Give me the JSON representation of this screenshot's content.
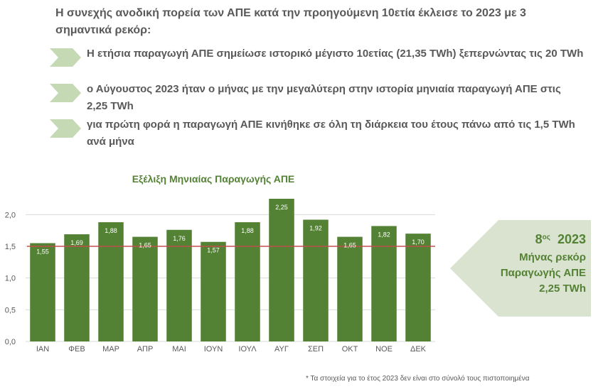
{
  "headline": "Η συνεχής ανοδική πορεία των ΑΠΕ κατά την προηγούμενη 10ετία έκλεισε το 2023 με 3 σημαντικά ρεκόρ:",
  "bullets": [
    {
      "text": "Η ετήσια παραγωγή ΑΠΕ σημείωσε ιστορικό μέγιστο 10ετίας  (21,35 TWh) ξεπερνώντας τις 20 TWh"
    },
    {
      "text": "ο Αύγουστος 2023 ήταν ο μήνας με την μεγαλύτερη στην ιστορία μηνιαία παραγωγή ΑΠΕ στις 2,25 TWh"
    },
    {
      "text": "για πρώτη φορά η παραγωγή ΑΠΕ  κινήθηκε σε όλη τη διάρκεια του έτους πάνω από τις 1,5 TWh ανά μήνα"
    }
  ],
  "callout": {
    "rank": "8",
    "rank_suffix": "ος",
    "year": "2023",
    "line1": "Μήνας ρεκόρ",
    "line2": "Παραγωγής ΑΠΕ",
    "line3": "2,25 TWh"
  },
  "footnote": "*  Τα στοιχεία για το έτος 2023 δεν είναι στο σύνολό τους πιστοποιημένα",
  "colors": {
    "bar": "#548235",
    "bar_label": "#ffffff",
    "reference_line": "#c0504d",
    "title": "#548235",
    "text": "#595959",
    "chevron": "#c5d9b5",
    "callout": "#d9e3cf",
    "grid": "#d9d9d9"
  },
  "chart_data": {
    "type": "bar",
    "title": "Εξέλιξη Μηνιαίας Παραγωγής ΑΠΕ",
    "categories": [
      "ΙΑΝ",
      "ΦΕΒ",
      "ΜΑΡ",
      "ΑΠΡ",
      "ΜΑΙ",
      "ΙΟΥΝ",
      "ΙΟΥΛ",
      "ΑΥΓ",
      "ΣΕΠ",
      "ΟΚΤ",
      "ΝΟΕ",
      "ΔΕΚ"
    ],
    "values": [
      1.55,
      1.69,
      1.88,
      1.65,
      1.76,
      1.57,
      1.88,
      2.25,
      1.92,
      1.65,
      1.82,
      1.7
    ],
    "value_labels": [
      "1,55",
      "1,69",
      "1,88",
      "1,65",
      "1,76",
      "1,57",
      "1,88",
      "2,25",
      "1,92",
      "1,65",
      "1,82",
      "1,70"
    ],
    "ylim": [
      0,
      2.25
    ],
    "y_ticks": [
      0,
      0.5,
      1.0,
      1.5,
      2.0
    ],
    "y_tick_labels": [
      "0,0",
      "0,5",
      "1,0",
      "1,5",
      "2,0"
    ],
    "reference_line": 1.5,
    "grid": true,
    "legend": "none"
  }
}
